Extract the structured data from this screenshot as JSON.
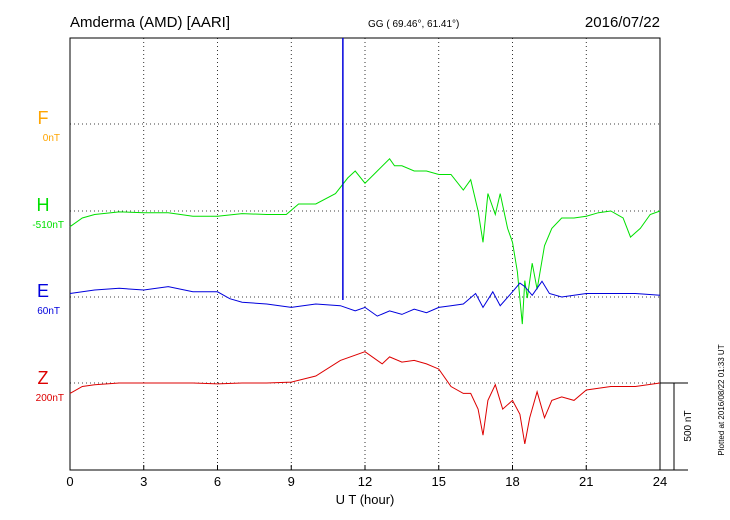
{
  "header": {
    "station": "Amderma (AMD)  [AARI]",
    "coords": "GG ( 69.46°,  61.41°)",
    "date": "2016/07/22"
  },
  "plotted_note": "Plotted at 2016/08/22 01:33 UT",
  "scale_bar_label": "500 nT",
  "colors": {
    "F": "#ffa500",
    "H": "#00e000",
    "E": "#0000dd",
    "Z": "#dd0000"
  },
  "chart_data": {
    "type": "line",
    "xlabel": "U T (hour)",
    "xlim": [
      0,
      24
    ],
    "xticks": [
      0,
      3,
      6,
      9,
      12,
      15,
      18,
      21,
      24
    ],
    "grid": true,
    "series": [
      {
        "name": "F",
        "baseline_label": "0nT",
        "x": [],
        "y": []
      },
      {
        "name": "H",
        "baseline_label": "-510nT",
        "x": [
          0,
          0.5,
          1,
          2,
          3,
          4,
          5,
          6,
          7,
          8,
          8.8,
          9.3,
          10,
          10.8,
          11.3,
          11.6,
          12,
          12.5,
          13,
          13.2,
          13.5,
          14,
          14.5,
          15,
          15.5,
          16,
          16.3,
          16.6,
          16.8,
          17.0,
          17.3,
          17.5,
          17.8,
          18.0,
          18.2,
          18.4,
          18.5,
          18.6,
          18.8,
          19.0,
          19.3,
          19.6,
          20,
          20.5,
          21,
          21.5,
          22,
          22.5,
          22.8,
          23.2,
          23.6,
          24
        ],
        "y": [
          -90,
          -40,
          -20,
          -5,
          -10,
          -10,
          -30,
          -30,
          -15,
          -20,
          -20,
          40,
          40,
          100,
          190,
          230,
          160,
          230,
          300,
          260,
          260,
          230,
          230,
          210,
          210,
          120,
          180,
          0,
          -180,
          100,
          -20,
          100,
          -100,
          -180,
          -350,
          -650,
          -400,
          -500,
          -300,
          -450,
          -200,
          -100,
          -40,
          -40,
          -30,
          -10,
          0,
          -40,
          -150,
          -100,
          -20,
          0
        ]
      },
      {
        "name": "E",
        "baseline_label": "60nT",
        "x": [
          0,
          1,
          2,
          3,
          4,
          5,
          6,
          6.5,
          7,
          8,
          9,
          10,
          11,
          11.6,
          12,
          12.5,
          13,
          13.5,
          14,
          14.5,
          15,
          15.5,
          16,
          16.5,
          16.8,
          17.2,
          17.5,
          18,
          18.3,
          18.5,
          18.8,
          19.2,
          19.5,
          20,
          21,
          22,
          23,
          24
        ],
        "y": [
          20,
          40,
          50,
          40,
          60,
          30,
          30,
          -10,
          -30,
          -40,
          -60,
          -40,
          -50,
          -80,
          -60,
          -110,
          -80,
          -100,
          -70,
          -90,
          -60,
          -50,
          -40,
          20,
          -60,
          30,
          -50,
          30,
          80,
          60,
          10,
          90,
          20,
          0,
          20,
          20,
          20,
          10
        ]
      },
      {
        "name": "Z",
        "baseline_label": "200nT",
        "x": [
          0,
          0.5,
          1,
          2,
          3,
          4,
          5,
          6,
          7,
          8,
          9,
          10,
          11,
          12,
          12.7,
          13,
          13.5,
          14,
          14.5,
          15,
          15.5,
          16,
          16.3,
          16.6,
          16.8,
          17.0,
          17.3,
          17.6,
          18.0,
          18.3,
          18.5,
          18.7,
          19.0,
          19.3,
          19.6,
          20,
          20.5,
          21,
          22,
          23,
          24
        ],
        "y": [
          -60,
          -20,
          -10,
          0,
          0,
          0,
          0,
          -5,
          0,
          0,
          5,
          40,
          130,
          180,
          110,
          150,
          120,
          130,
          110,
          80,
          -20,
          -60,
          -60,
          -150,
          -300,
          -100,
          -10,
          -150,
          -100,
          -180,
          -350,
          -200,
          -50,
          -200,
          -100,
          -80,
          -100,
          -40,
          -20,
          -20,
          0
        ]
      }
    ]
  }
}
